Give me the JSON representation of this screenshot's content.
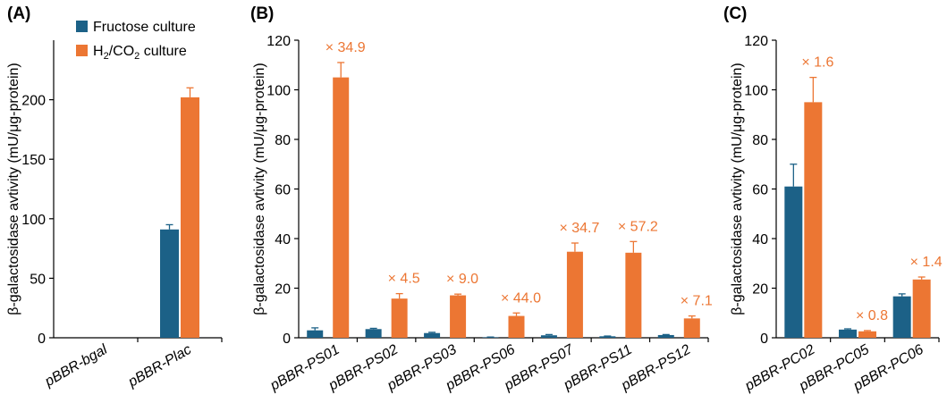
{
  "colors": {
    "fructose": "#1c6187",
    "h2co2": "#ec7633",
    "axis": "#000000"
  },
  "legend": {
    "fructose_label": "Fructose culture",
    "h2co2_label_parts": [
      "H",
      "2",
      "/CO",
      "2",
      " culture"
    ]
  },
  "chart_data": [
    {
      "panel": "(A)",
      "type": "bar",
      "ylabel": "β-galactosidase avtivity (mU/μg-protein)",
      "ylim": [
        0,
        250
      ],
      "yticks": [
        0,
        50,
        100,
        150,
        200
      ],
      "categories": [
        "pBBR-bgal",
        "pBBR-Plac"
      ],
      "series": [
        {
          "name": "Fructose culture",
          "values": [
            0,
            91
          ],
          "errors": [
            0,
            4
          ]
        },
        {
          "name": "H2/CO2 culture",
          "values": [
            0,
            202
          ],
          "errors": [
            0,
            8
          ]
        }
      ],
      "fold_labels": [
        "",
        ""
      ],
      "grid": false,
      "legend_position": "top-right"
    },
    {
      "panel": "(B)",
      "type": "bar",
      "ylabel": "β-galactosidase avtivity (mU/μg-protein)",
      "ylim": [
        0,
        120
      ],
      "yticks": [
        0,
        20,
        40,
        60,
        80,
        100,
        120
      ],
      "categories": [
        "pBBR-PS01",
        "pBBR-PS02",
        "pBBR-PS03",
        "pBBR-PS06",
        "pBBR-PS07",
        "pBBR-PS11",
        "pBBR-PS12"
      ],
      "series": [
        {
          "name": "Fructose culture",
          "values": [
            3,
            3.5,
            1.9,
            0.2,
            1,
            0.6,
            1.1
          ],
          "errors": [
            1,
            0.3,
            0.3,
            0.1,
            0.3,
            0.1,
            0.2
          ]
        },
        {
          "name": "H2/CO2 culture",
          "values": [
            105,
            15.8,
            17.1,
            8.8,
            34.7,
            34.3,
            7.8
          ],
          "errors": [
            6,
            2,
            0.5,
            1.2,
            3.5,
            4.5,
            1
          ]
        }
      ],
      "fold_labels": [
        "× 34.9",
        "× 4.5",
        "× 9.0",
        "× 44.0",
        "× 34.7",
        "× 57.2",
        "× 7.1"
      ],
      "grid": false
    },
    {
      "panel": "(C)",
      "type": "bar",
      "ylabel": "β-galactosidase avtivity (mU/μg-protein)",
      "ylim": [
        0,
        120
      ],
      "yticks": [
        0,
        20,
        40,
        60,
        80,
        100,
        120
      ],
      "categories": [
        "pBBR-PC02",
        "pBBR-PC05",
        "pBBR-PC06"
      ],
      "series": [
        {
          "name": "Fructose culture",
          "values": [
            61,
            3.3,
            16.7
          ],
          "errors": [
            9,
            0.3,
            1
          ]
        },
        {
          "name": "H2/CO2 culture",
          "values": [
            95,
            2.6,
            23.5
          ],
          "errors": [
            10,
            0.3,
            1
          ]
        }
      ],
      "fold_labels": [
        "× 1.6",
        "× 0.8",
        "× 1.4"
      ],
      "grid": false
    }
  ]
}
